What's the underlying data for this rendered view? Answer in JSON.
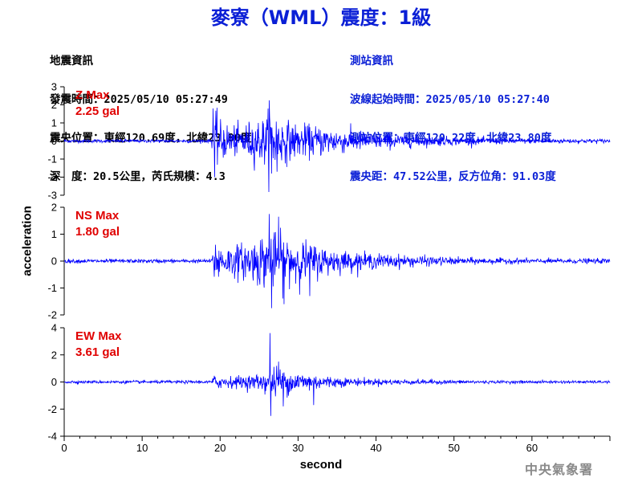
{
  "title": "麥寮（WML）震度：1級",
  "event_info": {
    "heading": "地震資訊",
    "origin_time": "發震時間：2025/05/10 05:27:49",
    "epicenter": "震央位置：東經120.69度，北緯23.80度",
    "depth_magnitude": "深　度：20.5公里，芮氏規模：4.3"
  },
  "station_info": {
    "heading": "測站資訊",
    "wave_start": "波線起始時間：2025/05/10 05:27:40",
    "location": "測站位置：東經120.22度，北緯23.80度",
    "distance": "震央距：47.52公里，反方位角：91.03度"
  },
  "agency": "中央氣象署",
  "colors": {
    "title": "#0a1fd6",
    "waveform": "#0000ff",
    "max_label": "#e00000",
    "station_info": "#0a1fd6"
  },
  "chart_data": {
    "type": "line",
    "xlabel": "second",
    "ylabel": "acceleration",
    "xlim": [
      0,
      70
    ],
    "x_ticks": [
      "0",
      "10",
      "20",
      "30",
      "40",
      "50",
      "60"
    ],
    "panels": [
      {
        "component": "Z",
        "max_label": "Z Max",
        "max_value": "2.25 gal",
        "ylim": [
          -3,
          3
        ],
        "y_ticks": [
          "3",
          "2",
          "1",
          "0",
          "-1",
          "-2",
          "-3"
        ],
        "envelope": [
          [
            0,
            0.1
          ],
          [
            18.9,
            0.1
          ],
          [
            19.2,
            1.8
          ],
          [
            20,
            1.2
          ],
          [
            22,
            0.9
          ],
          [
            24,
            1.2
          ],
          [
            26,
            1.5
          ],
          [
            26.5,
            2.2
          ],
          [
            28,
            1.3
          ],
          [
            30,
            1.0
          ],
          [
            33,
            0.9
          ],
          [
            36,
            0.7
          ],
          [
            40,
            0.5
          ],
          [
            45,
            0.35
          ],
          [
            50,
            0.25
          ],
          [
            55,
            0.2
          ],
          [
            60,
            0.15
          ],
          [
            70,
            0.12
          ]
        ],
        "peaks": [
          [
            19.1,
            1.8
          ],
          [
            19.3,
            -2.0
          ],
          [
            26.3,
            2.25
          ],
          [
            26.6,
            -1.8
          ],
          [
            27.3,
            -1.7
          ]
        ]
      },
      {
        "component": "NS",
        "max_label": "NS Max",
        "max_value": "1.80 gal",
        "ylim": [
          -2,
          2
        ],
        "y_ticks": [
          "2",
          "1",
          "0",
          "-1",
          "-2"
        ],
        "envelope": [
          [
            0,
            0.08
          ],
          [
            18.9,
            0.08
          ],
          [
            19.2,
            0.9
          ],
          [
            21,
            0.6
          ],
          [
            24,
            0.8
          ],
          [
            26,
            1.2
          ],
          [
            27,
            1.1
          ],
          [
            30,
            0.9
          ],
          [
            33,
            0.6
          ],
          [
            36,
            0.4
          ],
          [
            40,
            0.3
          ],
          [
            45,
            0.22
          ],
          [
            50,
            0.15
          ],
          [
            55,
            0.12
          ],
          [
            60,
            0.1
          ],
          [
            70,
            0.1
          ]
        ],
        "peaks": [
          [
            26.3,
            1.75
          ],
          [
            26.6,
            -1.75
          ],
          [
            27.5,
            1.65
          ],
          [
            28.2,
            -1.6
          ],
          [
            31.5,
            -1.3
          ]
        ]
      },
      {
        "component": "EW",
        "max_label": "EW Max",
        "max_value": "3.61 gal",
        "ylim": [
          -4,
          4
        ],
        "y_ticks": [
          "4",
          "2",
          "0",
          "-2",
          "-4"
        ],
        "envelope": [
          [
            0,
            0.12
          ],
          [
            18.9,
            0.12
          ],
          [
            19.2,
            0.6
          ],
          [
            21,
            0.45
          ],
          [
            24,
            0.55
          ],
          [
            26,
            0.9
          ],
          [
            27,
            1.3
          ],
          [
            29,
            0.9
          ],
          [
            31,
            0.8
          ],
          [
            33,
            0.55
          ],
          [
            36,
            0.35
          ],
          [
            40,
            0.25
          ],
          [
            45,
            0.2
          ],
          [
            50,
            0.15
          ],
          [
            55,
            0.12
          ],
          [
            60,
            0.12
          ],
          [
            70,
            0.1
          ]
        ],
        "peaks": [
          [
            26.4,
            3.61
          ],
          [
            26.5,
            -2.5
          ],
          [
            27.5,
            1.5
          ],
          [
            28.1,
            -1.8
          ],
          [
            32.0,
            -1.7
          ]
        ]
      }
    ]
  }
}
